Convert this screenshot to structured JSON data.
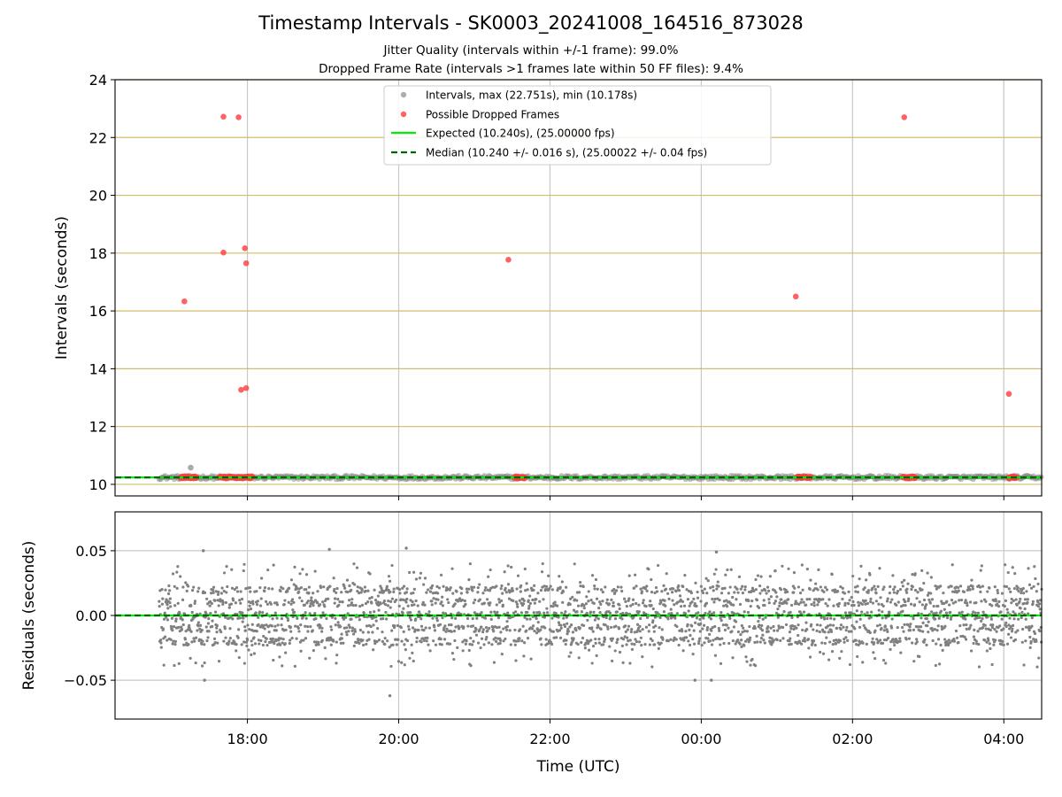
{
  "figure": {
    "title": "Timestamp Intervals - SK0003_20241008_164516_873028",
    "subtitle_1": "Jitter Quality (intervals within +/-1 frame): 99.0%",
    "subtitle_2": "Dropped Frame Rate (intervals >1 frames late within 50 FF files): 9.4%"
  },
  "colors": {
    "intervals": "#808080",
    "dropped": "#ff3b3b",
    "expected": "#00ee00",
    "median": "#006400",
    "gold_grid": "#d4bd6a",
    "grid": "#c8c8c8"
  },
  "chart_data": [
    {
      "type": "scatter",
      "panel": "intervals",
      "ylabel": "Intervals (seconds)",
      "xlabel": "",
      "ylim": [
        9.6,
        24
      ],
      "xlim": [
        "16:15",
        "04:30"
      ],
      "yticks": [
        "10",
        "12",
        "14",
        "16",
        "18",
        "20",
        "22",
        "24"
      ],
      "xticks": [
        "18:00",
        "20:00",
        "22:00",
        "00:00",
        "02:00",
        "04:00"
      ],
      "grid": true,
      "legend_position": "top-center",
      "legend": [
        "Intervals, max (22.751s), min (10.178s)",
        "Possible Dropped Frames",
        "Expected (10.240s), (25.00000 fps)",
        "Median (10.240 +/- 0.016 s), (25.00022 +/- 0.04 fps)"
      ],
      "series": [
        {
          "name": "Intervals, max (22.751s), min (10.178s)",
          "band_time_range": [
            "16:50",
            "04:30"
          ],
          "band_value_range": [
            10.178,
            10.3
          ],
          "points": [
            [
              "17:15",
              10.58
            ]
          ]
        },
        {
          "name": "Possible Dropped Frames",
          "points": [
            [
              "17:10",
              16.33
            ],
            [
              "17:41",
              22.72
            ],
            [
              "17:41",
              18.02
            ],
            [
              "17:53",
              22.7
            ],
            [
              "17:55",
              13.27
            ],
            [
              "17:58",
              18.17
            ],
            [
              "17:59",
              17.65
            ],
            [
              "17:59",
              13.33
            ],
            [
              "21:27",
              17.77
            ],
            [
              "01:15",
              16.5
            ],
            [
              "02:41",
              22.7
            ],
            [
              "04:04",
              13.13
            ]
          ],
          "clusters_at_10_24": [
            [
              "17:07",
              "17:20"
            ],
            [
              "17:38",
              "18:04"
            ],
            [
              "21:32",
              "21:40"
            ],
            [
              "01:16",
              "01:27"
            ],
            [
              "02:40",
              "02:50"
            ],
            [
              "04:04",
              "04:10"
            ]
          ]
        },
        {
          "name": "Expected (10.240s), (25.00000 fps)",
          "value": 10.24
        },
        {
          "name": "Median (10.240 +/- 0.016 s), (25.00022 +/- 0.04 fps)",
          "value": 10.24
        }
      ]
    },
    {
      "type": "scatter",
      "panel": "residuals",
      "ylabel": "Residuals (seconds)",
      "xlabel": "Time (UTC)",
      "ylim": [
        -0.08,
        0.08
      ],
      "xlim": [
        "16:15",
        "04:30"
      ],
      "yticks": [
        "−0.05",
        "0.00",
        "0.05"
      ],
      "xticks": [
        "18:00",
        "20:00",
        "22:00",
        "00:00",
        "02:00",
        "04:00"
      ],
      "grid": true,
      "series": [
        {
          "name": "residuals",
          "time_range": [
            "16:50",
            "04:30"
          ],
          "typical_range": [
            -0.04,
            0.04
          ],
          "outliers": [
            [
              "17:25",
              0.05
            ],
            [
              "17:26",
              -0.05
            ],
            [
              "19:05",
              0.051
            ],
            [
              "20:06",
              0.052
            ],
            [
              "19:53",
              -0.062
            ],
            [
              "23:55",
              -0.05
            ],
            [
              "00:12",
              0.049
            ],
            [
              "00:08",
              -0.05
            ]
          ]
        },
        {
          "name": "expected",
          "value": 0
        },
        {
          "name": "median",
          "value": 0
        }
      ]
    }
  ]
}
